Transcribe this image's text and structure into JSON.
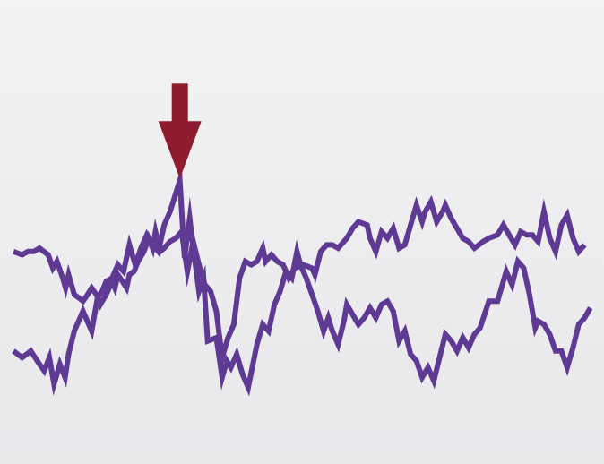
{
  "chart_data": {
    "type": "line",
    "title": "",
    "xlabel": "",
    "ylabel": "",
    "grid": false,
    "legend": "none",
    "xlim": [
      0,
      100
    ],
    "ylim": [
      0,
      100
    ],
    "colors": {
      "series": "#5e3a94",
      "arrow": "#8e1b2e",
      "background": "#eeeeef"
    },
    "annotations": [
      {
        "type": "arrow",
        "icon": "down-arrow-icon",
        "points_to_x": 28.7,
        "points_to_y": 77.5
      }
    ],
    "series": [
      {
        "x": [
          0,
          1.5,
          3,
          4.5,
          5.3,
          6.2,
          7,
          8,
          8.9,
          9.5,
          10.5,
          12,
          13.5,
          14.5,
          15.3,
          16,
          17,
          18,
          19,
          20,
          21,
          22,
          23,
          24,
          25,
          26,
          27,
          28.7,
          29.5,
          30.4,
          31,
          32,
          32.8,
          33.5,
          35,
          36,
          36.8,
          37.5,
          38.5,
          39.5,
          40.5,
          42,
          43,
          44,
          45,
          46,
          47,
          48,
          48.9,
          49.5,
          50.5,
          51.5,
          52.5,
          53.5,
          54.3,
          55,
          56,
          57,
          57.5,
          58.5,
          59.5,
          60.5,
          61.5,
          62.5,
          63.5,
          64.5,
          65.5,
          66.5,
          67.5,
          68.5,
          69.5,
          70.5,
          71.5,
          72.5,
          73.5,
          74.5,
          75.5,
          76.5,
          77.5,
          78.5,
          79.5,
          80.5,
          82,
          83.5,
          85,
          86,
          87,
          88,
          89,
          90,
          90.5,
          91.5,
          92.5,
          93.5,
          94.5,
          95.5,
          96.5,
          97.5,
          98.5,
          99.5
        ],
        "y": [
          26,
          24,
          26,
          22,
          20,
          24,
          16,
          22,
          18,
          25,
          32,
          38,
          32,
          42,
          44,
          47,
          48,
          52,
          50,
          58,
          52,
          57,
          61,
          58,
          56,
          64,
          68,
          77.5,
          54,
          66,
          57,
          44,
          48,
          29,
          30,
          18,
          23,
          21,
          25,
          19,
          15,
          28,
          34,
          32,
          40,
          44,
          50,
          48,
          56,
          52,
          48,
          43,
          38,
          32,
          36,
          32,
          28,
          35,
          40,
          37,
          34,
          36,
          39,
          36,
          40,
          41,
          38,
          29,
          32,
          25,
          23,
          18,
          21,
          17,
          24,
          31,
          29,
          26,
          30,
          27,
          31,
          33,
          41,
          41,
          50,
          46,
          53,
          51,
          43,
          33,
          35,
          34,
          31,
          26,
          26,
          21,
          27,
          34,
          36,
          39
        ]
      },
      {
        "x": [
          0,
          1.5,
          2.5,
          3.5,
          4.5,
          6,
          6.8,
          7.5,
          8.5,
          9,
          9.5,
          10.5,
          11.3,
          12,
          12.8,
          13.5,
          14.3,
          15,
          16,
          17,
          17.5,
          18,
          18.8,
          19.5,
          20,
          20.8,
          21.5,
          22.5,
          23.3,
          24,
          24.5,
          25.3,
          26,
          27,
          28,
          29,
          30,
          31,
          32,
          33,
          34,
          35,
          36,
          37,
          38,
          39,
          40,
          41,
          42,
          43,
          43.5,
          44.5,
          45.5,
          46.5,
          47.5,
          48.5,
          50,
          51.5,
          52,
          53,
          54,
          55,
          56,
          57.5,
          58.5,
          59.5,
          61,
          61.5,
          62.5,
          63.5,
          64.5,
          65.5,
          66.5,
          67.5,
          68.5,
          69.5,
          70.5,
          71,
          72,
          73,
          74,
          74.5,
          75.5,
          76.5,
          77.5,
          78.5,
          79.5,
          81,
          82,
          83.5,
          84.5,
          85.5,
          86.5,
          87.5,
          88.5,
          89.5,
          90.5,
          91.5,
          92.5,
          93.5,
          94.5,
          95.5,
          96.5,
          97.5,
          98.5
        ],
        "y": [
          56,
          55,
          56,
          56,
          57,
          55,
          51,
          53,
          48,
          45,
          49,
          43,
          42,
          41,
          43,
          45,
          43,
          40,
          43,
          47,
          45,
          49,
          47,
          45,
          49,
          50,
          53,
          56,
          60,
          57,
          62,
          56,
          57,
          59,
          60,
          62,
          50,
          59,
          52,
          46,
          44,
          38,
          24,
          30,
          34,
          48,
          53,
          52,
          53,
          57,
          53,
          55,
          53,
          52,
          48,
          51,
          52,
          51,
          49,
          56,
          58,
          58,
          57,
          60,
          63,
          65,
          64,
          60,
          56,
          62,
          60,
          63,
          57,
          58,
          64,
          70,
          65,
          68,
          71,
          65,
          68,
          70,
          66,
          63,
          60,
          59,
          57,
          59,
          60,
          61,
          64,
          61,
          58,
          62,
          61,
          61,
          59,
          68,
          60,
          56,
          64,
          67,
          60,
          56,
          58
        ]
      }
    ]
  }
}
